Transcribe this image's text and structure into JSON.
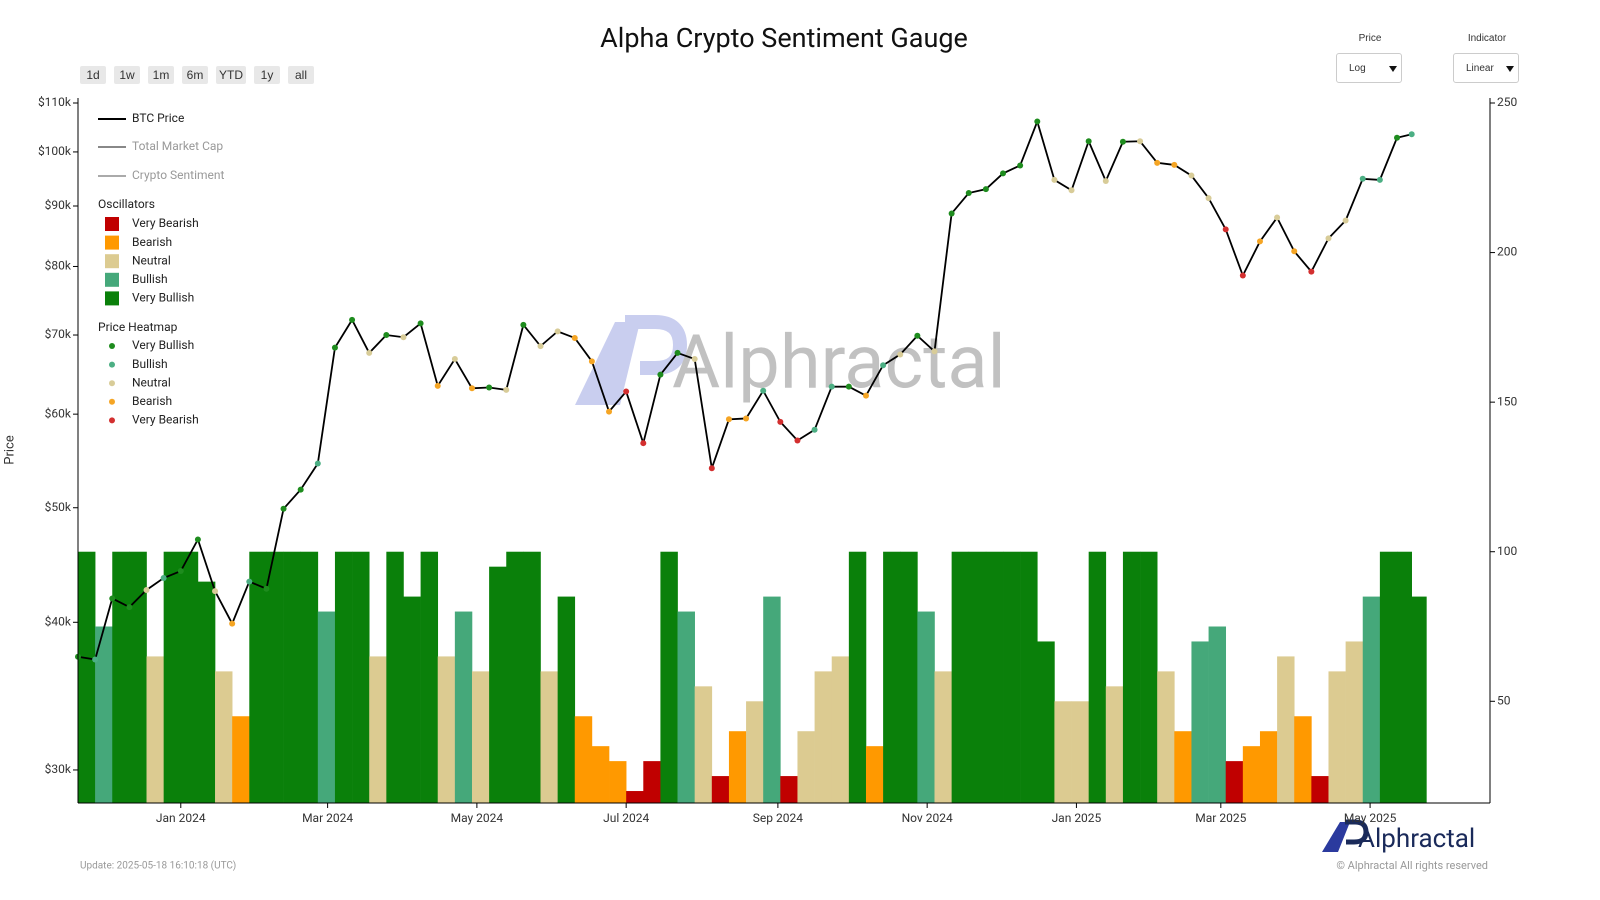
{
  "controls": {
    "ranges": [
      "1d",
      "1w",
      "1m",
      "6m",
      "YTD",
      "1y",
      "all"
    ],
    "dropdowns": [
      {
        "label": "Price",
        "value": "Log"
      },
      {
        "label": "Indicator",
        "value": "Linear"
      }
    ]
  },
  "chart_data": {
    "type": "line",
    "title": "Alpha Crypto Sentiment Gauge",
    "y_label": "Price",
    "x": [
      "2023-11-20",
      "2023-11-27",
      "2023-12-04",
      "2023-12-11",
      "2023-12-18",
      "2023-12-25",
      "2024-01-01",
      "2024-01-08",
      "2024-01-15",
      "2024-01-22",
      "2024-01-29",
      "2024-02-05",
      "2024-02-12",
      "2024-02-19",
      "2024-02-26",
      "2024-03-04",
      "2024-03-11",
      "2024-03-18",
      "2024-03-25",
      "2024-04-01",
      "2024-04-08",
      "2024-04-15",
      "2024-04-22",
      "2024-04-29",
      "2024-05-06",
      "2024-05-13",
      "2024-05-20",
      "2024-05-27",
      "2024-06-03",
      "2024-06-10",
      "2024-06-17",
      "2024-06-24",
      "2024-07-01",
      "2024-07-08",
      "2024-07-15",
      "2024-07-22",
      "2024-07-29",
      "2024-08-05",
      "2024-08-12",
      "2024-08-19",
      "2024-08-26",
      "2024-09-02",
      "2024-09-09",
      "2024-09-16",
      "2024-09-23",
      "2024-09-30",
      "2024-10-07",
      "2024-10-14",
      "2024-10-21",
      "2024-10-28",
      "2024-11-04",
      "2024-11-11",
      "2024-11-18",
      "2024-11-25",
      "2024-12-02",
      "2024-12-09",
      "2024-12-16",
      "2024-12-23",
      "2024-12-30",
      "2025-01-06",
      "2025-01-13",
      "2025-01-20",
      "2025-01-27",
      "2025-02-03",
      "2025-02-10",
      "2025-02-17",
      "2025-02-24",
      "2025-03-03",
      "2025-03-10",
      "2025-03-17",
      "2025-03-24",
      "2025-03-31",
      "2025-04-07",
      "2025-04-14",
      "2025-04-21",
      "2025-04-28",
      "2025-05-05",
      "2025-05-12",
      "2025-05-18"
    ],
    "xlim": [
      "2023-11-20",
      "2025-06-19"
    ],
    "xticks": [
      {
        "value": "2024-01-01",
        "label": "Jan 2024"
      },
      {
        "value": "2024-03-01",
        "label": "Mar 2024"
      },
      {
        "value": "2024-05-01",
        "label": "May 2024"
      },
      {
        "value": "2024-07-01",
        "label": "Jul 2024"
      },
      {
        "value": "2024-09-01",
        "label": "Sep 2024"
      },
      {
        "value": "2024-11-01",
        "label": "Nov 2024"
      },
      {
        "value": "2025-01-01",
        "label": "Jan 2025"
      },
      {
        "value": "2025-03-01",
        "label": "Mar 2025"
      },
      {
        "value": "2025-05-01",
        "label": "May 2025"
      }
    ],
    "log_scale": true,
    "ylim": [
      28130,
      110000
    ],
    "yticks": [
      {
        "value": 30000,
        "label": "$30k"
      },
      {
        "value": 40000,
        "label": "$40k"
      },
      {
        "value": 50000,
        "label": "$50k"
      },
      {
        "value": 60000,
        "label": "$60k"
      },
      {
        "value": 70000,
        "label": "$70k"
      },
      {
        "value": 80000,
        "label": "$80k"
      },
      {
        "value": 90000,
        "label": "$90k"
      },
      {
        "value": 100000,
        "label": "$100k"
      },
      {
        "value": 110000,
        "label": "$110k"
      }
    ],
    "y2lim": [
      16,
      250
    ],
    "y2ticks": [
      50,
      100,
      150,
      200,
      250
    ],
    "series": [
      {
        "name": "BTC Price",
        "color": "#000000",
        "values": [
          37400,
          37200,
          41900,
          41200,
          42600,
          43600,
          44200,
          47000,
          42500,
          39900,
          43300,
          42700,
          49900,
          51800,
          54500,
          68300,
          72100,
          67600,
          70000,
          69700,
          71600,
          63400,
          66800,
          63100,
          63200,
          62900,
          71400,
          68500,
          70500,
          69600,
          66500,
          60300,
          62700,
          56700,
          64800,
          67600,
          66800,
          54000,
          59400,
          59500,
          62800,
          59100,
          57000,
          58200,
          63300,
          63300,
          62200,
          66000,
          67400,
          69900,
          67800,
          88700,
          92300,
          93000,
          95900,
          97400,
          106100,
          94700,
          92800,
          102100,
          94500,
          102000,
          102100,
          97900,
          97500,
          95500,
          91400,
          86000,
          78600,
          84000,
          88000,
          82400,
          79200,
          84500,
          87500,
          94900,
          94700,
          102800,
          103500
        ],
        "point_colors": [
          "#1e8c1e",
          "#4caf84",
          "#1e8c1e",
          "#1e8c1e",
          "#d8cc98",
          "#4caf84",
          "#1e8c1e",
          "#1e8c1e",
          "#d8cc98",
          "#f5a524",
          "#4caf84",
          "#1e8c1e",
          "#1e8c1e",
          "#1e8c1e",
          "#4caf84",
          "#1e8c1e",
          "#1e8c1e",
          "#d8cc98",
          "#1e8c1e",
          "#d8cc98",
          "#1e8c1e",
          "#f5a524",
          "#d8cc98",
          "#f5a524",
          "#1e8c1e",
          "#d8cc98",
          "#1e8c1e",
          "#d8cc98",
          "#d8cc98",
          "#f5a524",
          "#f5a524",
          "#f5a524",
          "#d32f2f",
          "#d32f2f",
          "#1e8c1e",
          "#1e8c1e",
          "#d8cc98",
          "#d32f2f",
          "#f5a524",
          "#f5a524",
          "#4caf84",
          "#d32f2f",
          "#d32f2f",
          "#4caf84",
          "#4caf84",
          "#1e8c1e",
          "#f5a524",
          "#4caf84",
          "#d8cc98",
          "#1e8c1e",
          "#d8cc98",
          "#1e8c1e",
          "#1e8c1e",
          "#1e8c1e",
          "#1e8c1e",
          "#1e8c1e",
          "#1e8c1e",
          "#d8cc98",
          "#d8cc98",
          "#1e8c1e",
          "#d8cc98",
          "#1e8c1e",
          "#d8cc98",
          "#f5a524",
          "#f5a524",
          "#d8cc98",
          "#d8cc98",
          "#d32f2f",
          "#d32f2f",
          "#f5a524",
          "#d8cc98",
          "#f5a524",
          "#d32f2f",
          "#d8cc98",
          "#d8cc98",
          "#4caf84",
          "#4caf84",
          "#1e8c1e",
          "#4caf84"
        ]
      },
      {
        "name": "Oscillators",
        "type": "bar",
        "axis": "y2",
        "values": [
          100,
          75,
          100,
          100,
          65,
          100,
          100,
          90,
          60,
          45,
          100,
          100,
          100,
          100,
          80,
          100,
          100,
          65,
          100,
          85,
          100,
          65,
          80,
          60,
          95,
          100,
          100,
          60,
          85,
          45,
          35,
          30,
          20,
          30,
          100,
          80,
          55,
          25,
          40,
          50,
          85,
          25,
          40,
          60,
          65,
          100,
          35,
          100,
          100,
          80,
          60,
          100,
          100,
          100,
          100,
          100,
          70,
          50,
          50,
          100,
          55,
          100,
          100,
          60,
          40,
          70,
          75,
          30,
          35,
          40,
          65,
          45,
          25,
          60,
          70,
          85,
          100,
          100,
          85
        ],
        "colors": [
          "#0a800a",
          "#45a87a",
          "#0a800a",
          "#0a800a",
          "#dccb91",
          "#0a800a",
          "#0a800a",
          "#0a800a",
          "#dccb91",
          "#ff9900",
          "#0a800a",
          "#0a800a",
          "#0a800a",
          "#0a800a",
          "#45a87a",
          "#0a800a",
          "#0a800a",
          "#dccb91",
          "#0a800a",
          "#0a800a",
          "#0a800a",
          "#dccb91",
          "#45a87a",
          "#dccb91",
          "#0a800a",
          "#0a800a",
          "#0a800a",
          "#dccb91",
          "#0a800a",
          "#ff9900",
          "#ff9900",
          "#ff9900",
          "#c00000",
          "#c00000",
          "#0a800a",
          "#45a87a",
          "#dccb91",
          "#c00000",
          "#ff9900",
          "#dccb91",
          "#45a87a",
          "#c00000",
          "#dccb91",
          "#dccb91",
          "#dccb91",
          "#0a800a",
          "#ff9900",
          "#0a800a",
          "#0a800a",
          "#45a87a",
          "#dccb91",
          "#0a800a",
          "#0a800a",
          "#0a800a",
          "#0a800a",
          "#0a800a",
          "#0a800a",
          "#dccb91",
          "#dccb91",
          "#0a800a",
          "#dccb91",
          "#0a800a",
          "#0a800a",
          "#dccb91",
          "#ff9900",
          "#45a87a",
          "#45a87a",
          "#c00000",
          "#ff9900",
          "#ff9900",
          "#dccb91",
          "#ff9900",
          "#c00000",
          "#dccb91",
          "#dccb91",
          "#45a87a",
          "#0a800a",
          "#0a800a",
          "#0a800a"
        ]
      }
    ],
    "legend": {
      "inactive": [
        {
          "name": "Total Market Cap",
          "color": "#888888"
        },
        {
          "name": "Crypto Sentiment",
          "color": "#aaaaaa"
        }
      ],
      "oscillator_levels": [
        {
          "name": "Very Bearish",
          "color": "#c00000"
        },
        {
          "name": "Bearish",
          "color": "#ff9900"
        },
        {
          "name": "Neutral",
          "color": "#dccb91"
        },
        {
          "name": "Bullish",
          "color": "#45a87a"
        },
        {
          "name": "Very Bullish",
          "color": "#0a800a"
        }
      ],
      "heatmap_title": "Price Heatmap",
      "heatmap_levels": [
        {
          "name": "Very Bullish",
          "color": "#1e8c1e"
        },
        {
          "name": "Bullish",
          "color": "#4caf84"
        },
        {
          "name": "Neutral",
          "color": "#d8cc98"
        },
        {
          "name": "Bearish",
          "color": "#f5a524"
        },
        {
          "name": "Very Bearish",
          "color": "#d32f2f"
        }
      ]
    },
    "watermark": "Alphractal"
  },
  "footer": {
    "update": "Update: 2025-05-18 16:10:18 (UTC)",
    "brand": "Alphractal",
    "copyright": "© Alphractal All rights reserved"
  }
}
